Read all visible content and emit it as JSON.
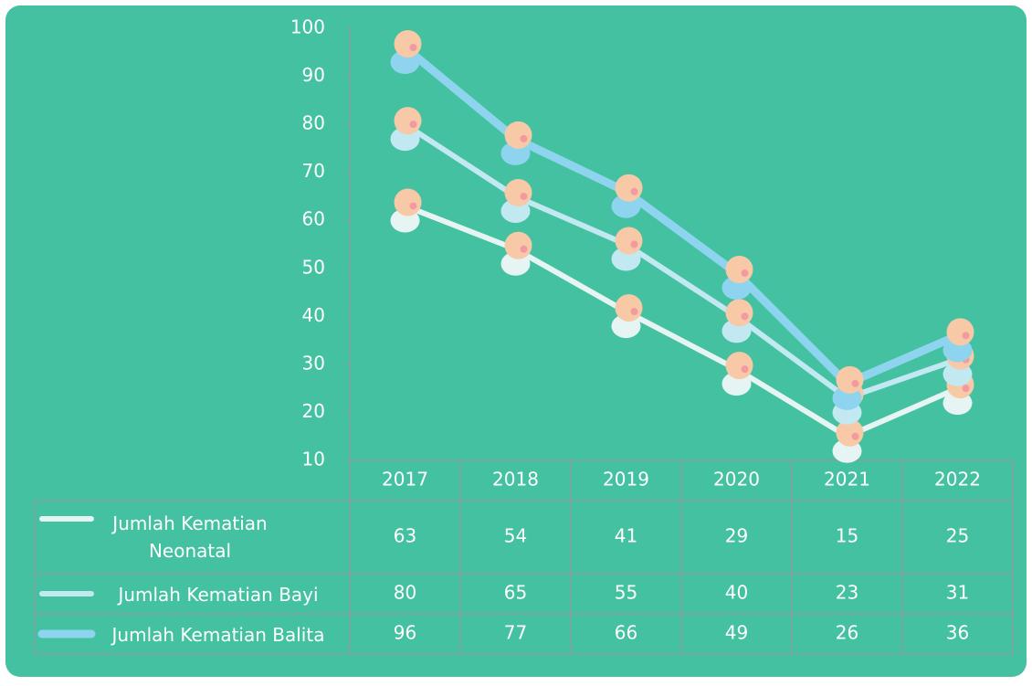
{
  "chart_data": {
    "type": "line",
    "categories": [
      "2017",
      "2018",
      "2019",
      "2020",
      "2021",
      "2022"
    ],
    "series": [
      {
        "name": "Jumlah Kematian Neonatal",
        "color": "#e6f5f3",
        "values": [
          63,
          54,
          41,
          29,
          15,
          25
        ]
      },
      {
        "name": "Jumlah Kematian Bayi",
        "color": "#c2e8f2",
        "values": [
          80,
          65,
          55,
          40,
          23,
          31
        ]
      },
      {
        "name": "Jumlah Kematian Balita",
        "color": "#8ed4ee",
        "values": [
          96,
          77,
          66,
          49,
          26,
          36
        ]
      }
    ],
    "ylim": [
      10,
      100
    ],
    "yticks": [
      10,
      20,
      30,
      40,
      50,
      60,
      70,
      80,
      90,
      100
    ]
  }
}
